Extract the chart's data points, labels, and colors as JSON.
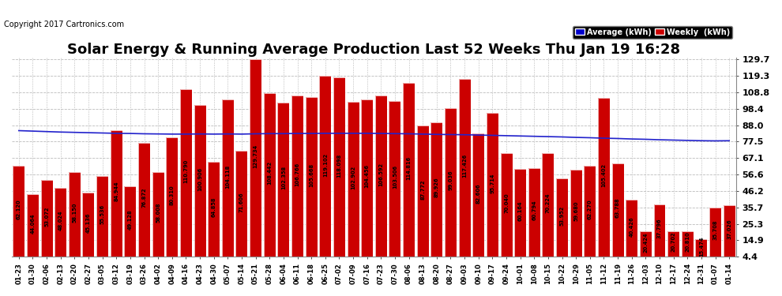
{
  "title": "Solar Energy & Running Average Production Last 52 Weeks Thu Jan 19 16:28",
  "copyright": "Copyright 2017 Cartronics.com",
  "ylabel_right_values": [
    129.7,
    119.3,
    108.8,
    98.4,
    88.0,
    77.5,
    67.1,
    56.6,
    46.2,
    35.7,
    25.3,
    14.9,
    4.4
  ],
  "bar_color": "#cc0000",
  "avg_line_color": "#2222cc",
  "background_color": "#ffffff",
  "grid_color": "#bbbbbb",
  "categories": [
    "01-23",
    "01-30",
    "02-06",
    "02-13",
    "02-20",
    "02-27",
    "03-05",
    "03-12",
    "03-19",
    "03-26",
    "04-02",
    "04-09",
    "04-16",
    "04-23",
    "04-30",
    "05-07",
    "05-14",
    "05-21",
    "05-28",
    "06-04",
    "06-11",
    "06-18",
    "06-25",
    "07-02",
    "07-09",
    "07-16",
    "07-23",
    "07-30",
    "08-06",
    "08-13",
    "08-20",
    "08-27",
    "09-03",
    "09-10",
    "09-17",
    "09-24",
    "10-01",
    "10-08",
    "10-15",
    "10-22",
    "10-29",
    "11-05",
    "11-12",
    "11-19",
    "11-26",
    "12-03",
    "12-10",
    "12-17",
    "12-24",
    "12-31",
    "01-07",
    "01-14"
  ],
  "weekly_values": [
    62.12,
    44.064,
    53.072,
    48.024,
    58.15,
    45.136,
    55.536,
    84.944,
    49.128,
    76.872,
    58.008,
    80.31,
    110.79,
    100.906,
    64.858,
    104.118,
    71.606,
    129.734,
    108.442,
    102.358,
    106.766,
    105.668,
    119.102,
    118.098,
    102.902,
    104.456,
    106.592,
    103.506,
    114.816,
    87.772,
    89.926,
    99.036,
    117.426,
    82.606,
    95.714,
    70.04,
    60.164,
    60.794,
    70.224,
    53.952,
    59.68,
    62.27,
    105.402,
    63.788,
    40.426,
    20.424,
    37.796,
    20.702,
    20.81,
    15.474,
    35.708,
    37.026
  ],
  "avg_values": [
    84.5,
    84.2,
    83.9,
    83.6,
    83.4,
    83.2,
    83.0,
    82.8,
    82.7,
    82.5,
    82.4,
    82.3,
    82.3,
    82.4,
    82.3,
    82.4,
    82.3,
    82.5,
    82.6,
    82.6,
    82.7,
    82.7,
    82.8,
    82.8,
    82.8,
    82.8,
    82.7,
    82.6,
    82.5,
    82.3,
    82.1,
    82.0,
    81.9,
    81.7,
    81.5,
    81.3,
    81.1,
    80.9,
    80.7,
    80.5,
    80.2,
    80.0,
    79.7,
    79.5,
    79.2,
    79.0,
    78.7,
    78.5,
    78.3,
    78.1,
    78.0,
    78.1
  ],
  "ylim_min": 4.4,
  "ylim_max": 129.7,
  "legend_avg_label": "Average (kWh)",
  "legend_weekly_label": "Weekly  (kWh)",
  "legend_avg_bg": "#0000cc",
  "legend_weekly_bg": "#cc0000",
  "title_fontsize": 13,
  "copyright_fontsize": 7,
  "tick_fontsize": 6,
  "bar_value_fontsize": 4.8,
  "ytick_fontsize": 8
}
